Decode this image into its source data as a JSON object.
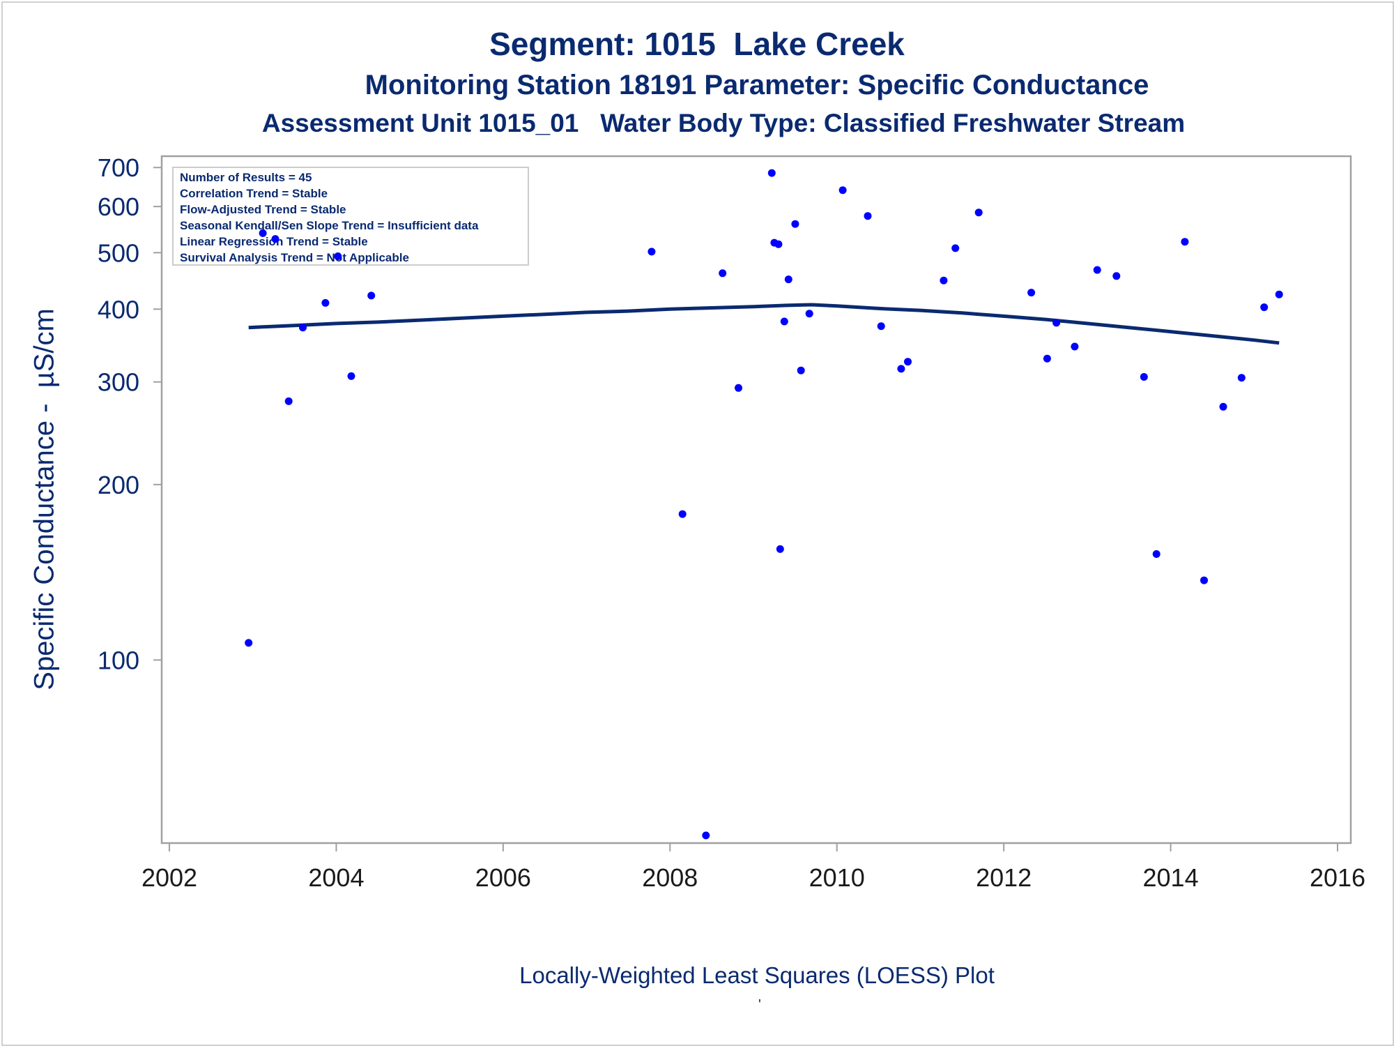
{
  "titles": {
    "line1": "Segment: 1015  Lake Creek",
    "line2": "Monitoring Station 18191 Parameter: Specific Conductance",
    "line3": "Assessment Unit 1015_01   Water Body Type: Classified Freshwater Stream"
  },
  "footnote": "Locally-Weighted Least Squares (LOESS) Plot",
  "footnote_mark": "'",
  "legend": [
    "Number of Results = 45",
    "Correlation Trend = Stable",
    "Flow-Adjusted Trend = Stable",
    "Seasonal Kendall/Sen Slope Trend = Insufficient data",
    "Linear Regression Trend = Stable",
    "Survival Analysis Trend = Not Applicable"
  ],
  "colors": {
    "text": "#0a2a70",
    "points": "#0000ff",
    "line": "#0a2a70",
    "axis": "#a0a0a0"
  },
  "chart_data": {
    "type": "scatter",
    "ylabel": "Specific Conductance -  µS/cm",
    "xlabel": "",
    "yscale": "log",
    "xlim": [
      2002,
      2016
    ],
    "ylim": [
      50,
      720
    ],
    "xticks": [
      2002,
      2004,
      2006,
      2008,
      2010,
      2012,
      2014,
      2016
    ],
    "yticks": [
      100,
      200,
      300,
      400,
      500,
      600,
      700
    ],
    "points": [
      [
        2002.95,
        107
      ],
      [
        2003.12,
        540
      ],
      [
        2003.27,
        528
      ],
      [
        2003.43,
        278
      ],
      [
        2003.6,
        372
      ],
      [
        2003.87,
        410
      ],
      [
        2004.02,
        493
      ],
      [
        2004.18,
        307
      ],
      [
        2004.42,
        422
      ],
      [
        2007.78,
        502
      ],
      [
        2008.15,
        178
      ],
      [
        2008.43,
        50
      ],
      [
        2008.63,
        461
      ],
      [
        2008.82,
        293
      ],
      [
        2009.22,
        685
      ],
      [
        2009.25,
        520
      ],
      [
        2009.3,
        517
      ],
      [
        2009.32,
        155
      ],
      [
        2009.37,
        381
      ],
      [
        2009.42,
        450
      ],
      [
        2009.5,
        560
      ],
      [
        2009.57,
        314
      ],
      [
        2009.67,
        393
      ],
      [
        2010.07,
        640
      ],
      [
        2010.37,
        578
      ],
      [
        2010.53,
        374
      ],
      [
        2010.77,
        316
      ],
      [
        2010.85,
        325
      ],
      [
        2011.28,
        448
      ],
      [
        2011.42,
        509
      ],
      [
        2011.7,
        586
      ],
      [
        2012.33,
        427
      ],
      [
        2012.52,
        329
      ],
      [
        2012.63,
        379
      ],
      [
        2012.85,
        345
      ],
      [
        2013.12,
        467
      ],
      [
        2013.35,
        456
      ],
      [
        2013.68,
        306
      ],
      [
        2013.83,
        152
      ],
      [
        2014.17,
        522
      ],
      [
        2014.4,
        137
      ],
      [
        2014.63,
        272
      ],
      [
        2014.85,
        305
      ],
      [
        2015.12,
        403
      ],
      [
        2015.3,
        424
      ]
    ],
    "loess": [
      [
        2002.95,
        372
      ],
      [
        2003.5,
        375
      ],
      [
        2004.0,
        378
      ],
      [
        2004.5,
        380
      ],
      [
        2005.0,
        383
      ],
      [
        2005.5,
        386
      ],
      [
        2006.0,
        389
      ],
      [
        2006.5,
        392
      ],
      [
        2007.0,
        395
      ],
      [
        2007.5,
        397
      ],
      [
        2008.0,
        400
      ],
      [
        2008.5,
        402
      ],
      [
        2009.0,
        404
      ],
      [
        2009.4,
        406
      ],
      [
        2009.7,
        407
      ],
      [
        2010.0,
        405
      ],
      [
        2010.5,
        401
      ],
      [
        2011.0,
        398
      ],
      [
        2011.5,
        394
      ],
      [
        2012.0,
        389
      ],
      [
        2012.5,
        384
      ],
      [
        2013.0,
        378
      ],
      [
        2013.5,
        372
      ],
      [
        2014.0,
        366
      ],
      [
        2014.5,
        360
      ],
      [
        2015.0,
        354
      ],
      [
        2015.3,
        350
      ]
    ]
  }
}
